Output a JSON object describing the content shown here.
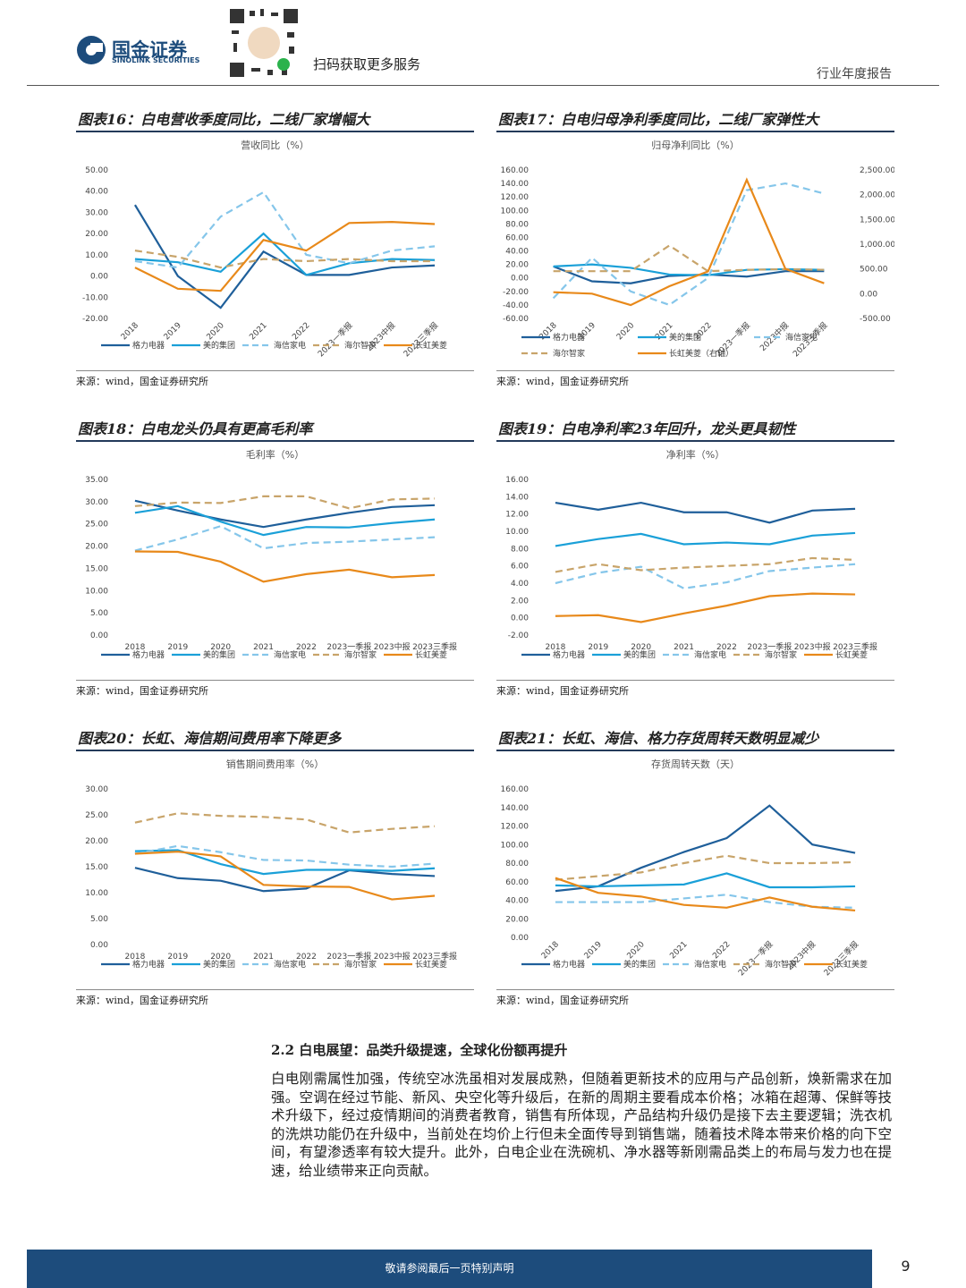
{
  "header": {
    "logo_cn": "国金证券",
    "logo_en": "SINOLINK SECURITIES",
    "qr_text": "扫码获取更多服务",
    "report_type": "行业年度报告"
  },
  "chart_data": [
    {
      "type": "line",
      "figure_title": "图表16：白电营收季度同比，二线厂家增幅大",
      "title": "营收同比（%）",
      "source": "来源：wind，国金证券研究所",
      "categories": [
        "2018",
        "2019",
        "2020",
        "2021",
        "2022",
        "2023一季报",
        "2023中报",
        "2023三季报"
      ],
      "x_tick_rotation": -45,
      "ylim": [
        -20,
        50
      ],
      "yticks": [
        {
          "value": -20,
          "label": "-20.00"
        },
        {
          "value": -10,
          "label": "-10.00"
        },
        {
          "value": 0,
          "label": "0.00"
        },
        {
          "value": 10,
          "label": "10.00"
        },
        {
          "value": 20,
          "label": "20.00"
        },
        {
          "value": 30,
          "label": "30.00"
        },
        {
          "value": 40,
          "label": "40.00"
        },
        {
          "value": 50,
          "label": "50.00"
        }
      ],
      "series": [
        {
          "name": "格力电器",
          "color": "#1f5f9a",
          "dash": "solid",
          "values": [
            33.5,
            0,
            -15,
            11.5,
            0.5,
            0.5,
            4,
            5
          ]
        },
        {
          "name": "美的集团",
          "color": "#1aa0d8",
          "dash": "solid",
          "values": [
            8,
            6.5,
            2,
            20,
            0.5,
            6,
            8,
            7.5
          ]
        },
        {
          "name": "海信家电",
          "color": "#85c6ea",
          "dash": "dashed",
          "values": [
            7,
            4,
            28,
            39.5,
            10,
            6,
            12,
            14
          ]
        },
        {
          "name": "海尔智家",
          "color": "#c8a46a",
          "dash": "dashed",
          "values": [
            12,
            9,
            4,
            8,
            7,
            8,
            7,
            7
          ]
        },
        {
          "name": "长虹美菱",
          "color": "#e8891a",
          "dash": "solid",
          "values": [
            4,
            -6,
            -7,
            17,
            12,
            25,
            25.5,
            24.5
          ]
        }
      ]
    },
    {
      "type": "line",
      "figure_title": "图表17：白电归母净利季度同比，二线厂家弹性大",
      "title": "归母净利同比（%）",
      "source": "来源：wind，国金证券研究所",
      "categories": [
        "2018",
        "2019",
        "2020",
        "2021",
        "2022",
        "2023一季报",
        "2023中报",
        "2023三季报"
      ],
      "x_tick_rotation": -45,
      "ylim": [
        -60,
        160
      ],
      "yticks": [
        {
          "value": -60,
          "label": "-60.00"
        },
        {
          "value": -40,
          "label": "-40.00"
        },
        {
          "value": -20,
          "label": "-20.00"
        },
        {
          "value": 0,
          "label": "0.00"
        },
        {
          "value": 20,
          "label": "20.00"
        },
        {
          "value": 40,
          "label": "40.00"
        },
        {
          "value": 60,
          "label": "60.00"
        },
        {
          "value": 80,
          "label": "80.00"
        },
        {
          "value": 100,
          "label": "100.00"
        },
        {
          "value": 120,
          "label": "120.00"
        },
        {
          "value": 140,
          "label": "140.00"
        },
        {
          "value": 160,
          "label": "160.00"
        }
      ],
      "y2lim": [
        -500,
        2500
      ],
      "y2ticks": [
        {
          "value": -500,
          "label": "-500.00"
        },
        {
          "value": 0,
          "label": "0.00"
        },
        {
          "value": 500,
          "label": "500.00"
        },
        {
          "value": 1000,
          "label": "1,000.00"
        },
        {
          "value": 1500,
          "label": "1,500.00"
        },
        {
          "value": 2000,
          "label": "2,000.00"
        },
        {
          "value": 2500,
          "label": "2,500.00"
        }
      ],
      "series": [
        {
          "name": "格力电器",
          "color": "#1f5f9a",
          "dash": "solid",
          "values": [
            17,
            -5,
            -8,
            3,
            5,
            2,
            10,
            10
          ]
        },
        {
          "name": "美的集团",
          "color": "#1aa0d8",
          "dash": "solid",
          "values": [
            17,
            20,
            15,
            5,
            4,
            12,
            13,
            12
          ]
        },
        {
          "name": "海信家电",
          "color": "#85c6ea",
          "dash": "dashed",
          "values": [
            -30,
            30,
            -20,
            -40,
            0,
            130,
            140,
            125
          ]
        },
        {
          "name": "海尔智家",
          "color": "#c8a46a",
          "dash": "dashed",
          "values": [
            10,
            10,
            10,
            48,
            10,
            12,
            13,
            12
          ]
        },
        {
          "name": "长虹美菱（右轴）",
          "color": "#e8891a",
          "dash": "solid",
          "axis": "y2",
          "values": [
            30,
            0,
            -230,
            150,
            450,
            2300,
            500,
            210
          ]
        }
      ]
    },
    {
      "type": "line",
      "figure_title": "图表18：白电龙头仍具有更高毛利率",
      "title": "毛利率（%）",
      "source": "来源：wind，国金证券研究所",
      "categories": [
        "2018",
        "2019",
        "2020",
        "2021",
        "2022",
        "2023一季报",
        "2023中报",
        "2023三季报"
      ],
      "ylim": [
        0,
        35
      ],
      "yticks": [
        {
          "value": 0,
          "label": "0.00"
        },
        {
          "value": 5,
          "label": "5.00"
        },
        {
          "value": 10,
          "label": "10.00"
        },
        {
          "value": 15,
          "label": "15.00"
        },
        {
          "value": 20,
          "label": "20.00"
        },
        {
          "value": 25,
          "label": "25.00"
        },
        {
          "value": 30,
          "label": "30.00"
        },
        {
          "value": 35,
          "label": "35.00"
        }
      ],
      "series": [
        {
          "name": "格力电器",
          "color": "#1f5f9a",
          "dash": "solid",
          "values": [
            30.2,
            28,
            26,
            24.3,
            26,
            27.5,
            28.8,
            29.2
          ]
        },
        {
          "name": "美的集团",
          "color": "#1aa0d8",
          "dash": "solid",
          "values": [
            27.5,
            29,
            25.5,
            22.5,
            24.3,
            24.2,
            25.2,
            26
          ]
        },
        {
          "name": "海信家电",
          "color": "#85c6ea",
          "dash": "dashed",
          "values": [
            19,
            21.5,
            24.5,
            19.5,
            20.7,
            21,
            21.5,
            22
          ]
        },
        {
          "name": "海尔智家",
          "color": "#c8a46a",
          "dash": "dashed",
          "values": [
            29,
            29.8,
            29.7,
            31.2,
            31.2,
            28.5,
            30.5,
            30.7
          ]
        },
        {
          "name": "长虹美菱",
          "color": "#e8891a",
          "dash": "solid",
          "values": [
            18.8,
            18.7,
            16.5,
            12,
            13.7,
            14.7,
            13,
            13.5
          ]
        }
      ]
    },
    {
      "type": "line",
      "figure_title": "图表19：白电净利率23年回升，龙头更具韧性",
      "title": "净利率（%）",
      "source": "来源：wind，国金证券研究所",
      "categories": [
        "2018",
        "2019",
        "2020",
        "2021",
        "2022",
        "2023一季报",
        "2023中报",
        "2023三季报"
      ],
      "ylim": [
        -2,
        16
      ],
      "yticks": [
        {
          "value": -2,
          "label": "-2.00"
        },
        {
          "value": 0,
          "label": "0.00"
        },
        {
          "value": 2,
          "label": "2.00"
        },
        {
          "value": 4,
          "label": "4.00"
        },
        {
          "value": 6,
          "label": "6.00"
        },
        {
          "value": 8,
          "label": "8.00"
        },
        {
          "value": 10,
          "label": "10.00"
        },
        {
          "value": 12,
          "label": "12.00"
        },
        {
          "value": 14,
          "label": "14.00"
        },
        {
          "value": 16,
          "label": "16.00"
        }
      ],
      "series": [
        {
          "name": "格力电器",
          "color": "#1f5f9a",
          "dash": "solid",
          "values": [
            13.3,
            12.5,
            13.3,
            12.2,
            12.2,
            11,
            12.4,
            12.6
          ]
        },
        {
          "name": "美的集团",
          "color": "#1aa0d8",
          "dash": "solid",
          "values": [
            8.3,
            9.1,
            9.7,
            8.5,
            8.7,
            8.5,
            9.5,
            9.8
          ]
        },
        {
          "name": "海信家电",
          "color": "#85c6ea",
          "dash": "dashed",
          "values": [
            4,
            5.2,
            5.9,
            3.4,
            4.1,
            5.4,
            5.8,
            6.2
          ]
        },
        {
          "name": "海尔智家",
          "color": "#c8a46a",
          "dash": "dashed",
          "values": [
            5.3,
            6.2,
            5.5,
            5.8,
            6,
            6.2,
            6.9,
            6.7
          ]
        },
        {
          "name": "长虹美菱",
          "color": "#e8891a",
          "dash": "solid",
          "values": [
            0.2,
            0.3,
            -0.5,
            0.5,
            1.4,
            2.5,
            2.8,
            2.7
          ]
        }
      ]
    },
    {
      "type": "line",
      "figure_title": "图表20：长虹、海信期间费用率下降更多",
      "title": "销售期间费用率（%）",
      "source": "来源：wind，国金证券研究所",
      "categories": [
        "2018",
        "2019",
        "2020",
        "2021",
        "2022",
        "2023一季报",
        "2023中报",
        "2023三季报"
      ],
      "ylim": [
        0,
        30
      ],
      "yticks": [
        {
          "value": 0,
          "label": "0.00"
        },
        {
          "value": 5,
          "label": "5.00"
        },
        {
          "value": 10,
          "label": "10.00"
        },
        {
          "value": 15,
          "label": "15.00"
        },
        {
          "value": 20,
          "label": "20.00"
        },
        {
          "value": 25,
          "label": "25.00"
        },
        {
          "value": 30,
          "label": "30.00"
        }
      ],
      "series": [
        {
          "name": "格力电器",
          "color": "#1f5f9a",
          "dash": "solid",
          "values": [
            14.8,
            12.8,
            12.3,
            10.3,
            10.8,
            14.3,
            13.6,
            13.2
          ]
        },
        {
          "name": "美的集团",
          "color": "#1aa0d8",
          "dash": "solid",
          "values": [
            18,
            18.2,
            15.5,
            13.6,
            14.4,
            14.4,
            14.2,
            14.7
          ]
        },
        {
          "name": "海信家电",
          "color": "#85c6ea",
          "dash": "dashed",
          "values": [
            17.5,
            19,
            17.8,
            16.3,
            16.2,
            15.4,
            15,
            15.6
          ]
        },
        {
          "name": "海尔智家",
          "color": "#c8a46a",
          "dash": "dashed",
          "values": [
            23.5,
            25.3,
            24.8,
            24.6,
            24.1,
            21.6,
            22.3,
            22.8
          ]
        },
        {
          "name": "长虹美菱",
          "color": "#e8891a",
          "dash": "solid",
          "values": [
            17.5,
            17.9,
            17,
            11.5,
            11.2,
            11.1,
            8.7,
            9.4
          ]
        }
      ]
    },
    {
      "type": "line",
      "figure_title": "图表21：长虹、海信、格力存货周转天数明显减少",
      "title": "存货周转天数（天）",
      "source": "来源：wind，国金证券研究所",
      "categories": [
        "2018",
        "2019",
        "2020",
        "2021",
        "2022",
        "2023一季报",
        "2023中报",
        "2023三季报"
      ],
      "x_tick_rotation": -45,
      "ylim": [
        0,
        160
      ],
      "yticks": [
        {
          "value": 0,
          "label": "0.00"
        },
        {
          "value": 20,
          "label": "20.00"
        },
        {
          "value": 40,
          "label": "40.00"
        },
        {
          "value": 60,
          "label": "60.00"
        },
        {
          "value": 80,
          "label": "80.00"
        },
        {
          "value": 100,
          "label": "100.00"
        },
        {
          "value": 120,
          "label": "120.00"
        },
        {
          "value": 140,
          "label": "140.00"
        },
        {
          "value": 160,
          "label": "160.00"
        }
      ],
      "series": [
        {
          "name": "格力电器",
          "color": "#1f5f9a",
          "dash": "solid",
          "values": [
            50,
            55,
            75,
            92,
            107,
            142,
            100,
            91
          ]
        },
        {
          "name": "美的集团",
          "color": "#1aa0d8",
          "dash": "solid",
          "values": [
            56,
            55,
            56,
            57,
            69,
            54,
            54,
            55
          ]
        },
        {
          "name": "海信家电",
          "color": "#85c6ea",
          "dash": "dashed",
          "values": [
            38,
            38,
            38,
            42,
            46,
            38,
            33,
            32
          ]
        },
        {
          "name": "海尔智家",
          "color": "#c8a46a",
          "dash": "dashed",
          "values": [
            62,
            66,
            70,
            80,
            88,
            80,
            80,
            81
          ]
        },
        {
          "name": "长虹美菱",
          "color": "#e8891a",
          "dash": "solid",
          "values": [
            64,
            48,
            44,
            35,
            32,
            43,
            33,
            29
          ]
        }
      ]
    }
  ],
  "section": {
    "heading": "2.2 白电展望：品类升级提速，全球化份额再提升",
    "paragraph": "白电刚需属性加强，传统空冰洗虽相对发展成熟，但随着更新技术的应用与产品创新，焕新需求在加强。空调在经过节能、新风、央空化等升级后，在新的周期主要看成本价格；冰箱在超薄、保鲜等技术升级下，经过疫情期间的消费者教育，销售有所体现，产品结构升级仍是接下去主要逻辑；洗衣机的洗烘功能仍在升级中，当前处在均价上行但未全面传导到销售端，随着技术降本带来价格的向下空间，有望渗透率有较大提升。此外，白电企业在洗碗机、净水器等新刚需品类上的布局与发力也在提速，给业绩带来正向贡献。"
  },
  "footer": {
    "disclaimer": "敬请参阅最后一页特别声明",
    "page": "9"
  }
}
